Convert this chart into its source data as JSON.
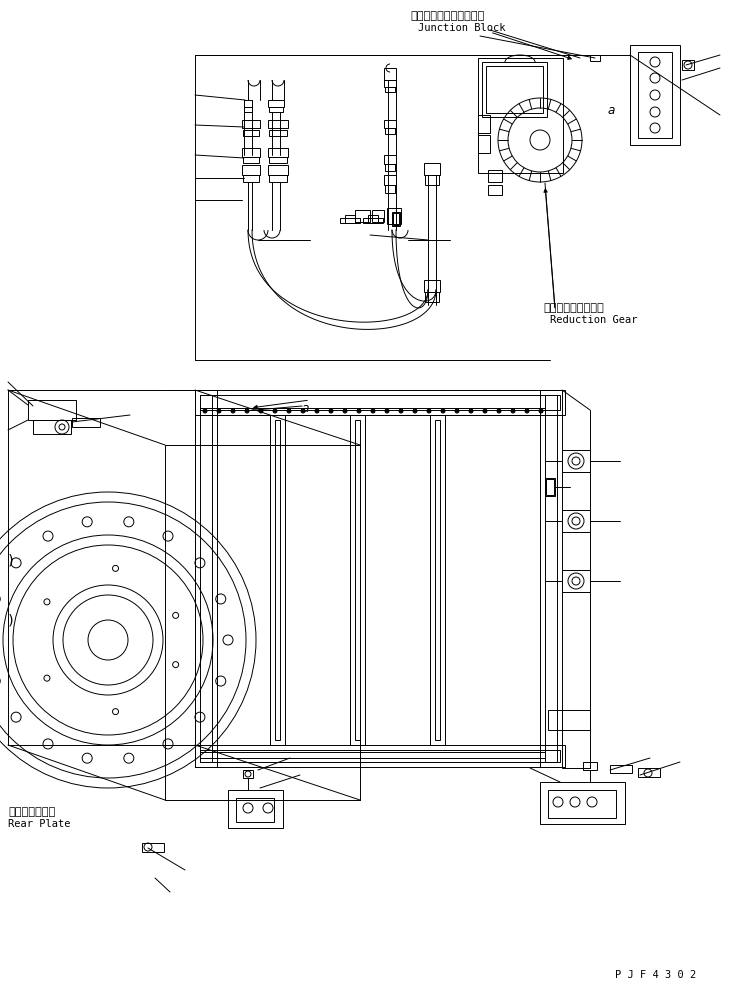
{
  "bg_color": "#ffffff",
  "line_color": "#000000",
  "fig_width": 7.35,
  "fig_height": 9.89,
  "dpi": 100,
  "label_junction_block_jp": "ジャンクションブロック",
  "label_junction_block_en": "Junction Block",
  "label_reduction_gear_jp": "リダクションギヤー",
  "label_reduction_gear_en": "Reduction Gear",
  "label_rear_plate_jp": "リヤープレート",
  "label_rear_plate_en": "Rear Plate",
  "label_a1": "a",
  "label_a2": "a",
  "label_pjf": "P J F 4 3 0 2"
}
